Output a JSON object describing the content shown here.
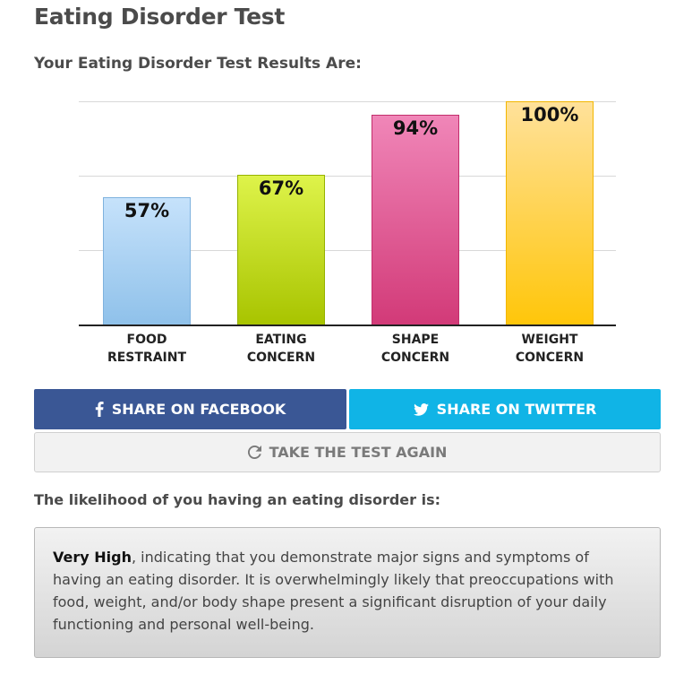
{
  "page": {
    "title": "Eating Disorder Test",
    "results_heading": "Your Eating Disorder Test Results Are:"
  },
  "chart_data": {
    "type": "bar",
    "categories": [
      [
        "FOOD",
        "RESTRAINT"
      ],
      [
        "EATING",
        "CONCERN"
      ],
      [
        "SHAPE",
        "CONCERN"
      ],
      [
        "WEIGHT",
        "CONCERN"
      ]
    ],
    "values": [
      57,
      67,
      94,
      100
    ],
    "value_labels": [
      "57%",
      "67%",
      "94%",
      "100%"
    ],
    "ylim": [
      0,
      100
    ],
    "grid": true,
    "colors": [
      [
        "#c6e2fb",
        "#8fc1ea"
      ],
      [
        "#def34a",
        "#a8c400"
      ],
      [
        "#f086b8",
        "#d23a78"
      ],
      [
        "#ffe19a",
        "#ffc60a"
      ]
    ],
    "border_colors": [
      "#7fb2de",
      "#96b200",
      "#c22e6c",
      "#f2b600"
    ]
  },
  "buttons": {
    "facebook_label": "SHARE ON FACEBOOK",
    "twitter_label": "SHARE ON TWITTER",
    "retake_label": "TAKE THE TEST AGAIN"
  },
  "likelihood": {
    "heading": "The likelihood of you having an eating disorder is:",
    "level": "Very High",
    "description": ", indicating that you demonstrate major signs and symptoms of having an eating disorder. It is overwhelmingly likely that preoccupations with food, weight, and/or body shape present a significant disruption of your daily functioning and personal well-being."
  },
  "colors": {
    "facebook": "#3a5795",
    "twitter": "#10b4e6"
  }
}
